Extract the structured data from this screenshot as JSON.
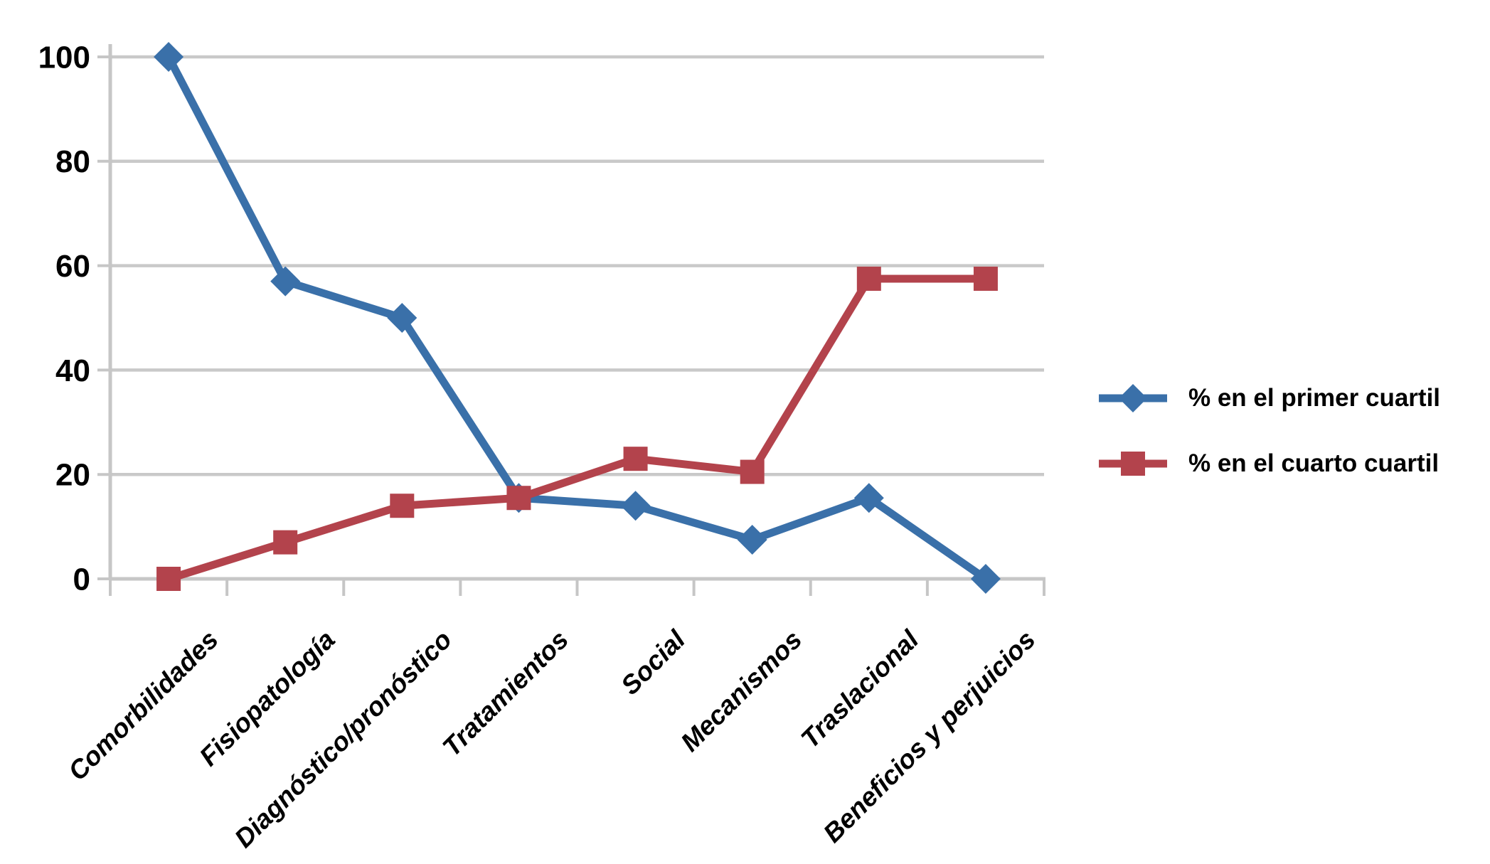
{
  "chart_data": {
    "type": "line",
    "categories": [
      "Comorbilidades",
      "Fisiopatología",
      "Diagnóstico/pronóstico",
      "Tratamientos",
      "Social",
      "Mecanismos",
      "Traslacional",
      "Beneficios y perjuicios"
    ],
    "series": [
      {
        "name": "% en el primer cuartil",
        "color": "#3A70A9",
        "marker": "diamond",
        "values": [
          100,
          57,
          50,
          15.5,
          14,
          7.5,
          15.5,
          0
        ]
      },
      {
        "name": "% en el cuarto cuartil",
        "color": "#B3434C",
        "marker": "square",
        "values": [
          0,
          7,
          14,
          15.5,
          23,
          20.5,
          57.5,
          57.5
        ]
      }
    ],
    "xlabel": "",
    "ylabel": "",
    "ylim": [
      0,
      100
    ],
    "yticks": [
      0,
      20,
      40,
      60,
      80,
      100
    ],
    "grid": true,
    "gridline_color": "#C9C9C9",
    "axis_color": "#C6C6C6",
    "text_color": "#000000",
    "background": "#FFFFFF",
    "legend_position": "right",
    "x_label_rotation_deg": -45
  }
}
